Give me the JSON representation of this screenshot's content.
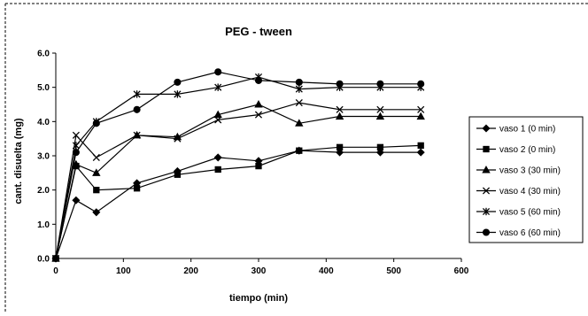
{
  "chart_data": {
    "type": "line",
    "title": "PEG - tween",
    "xlabel": "tiempo (min)",
    "ylabel": "cant. disuelta (mg)",
    "xlim": [
      0,
      600
    ],
    "ylim": [
      0,
      6.0
    ],
    "xticks": [
      "0",
      "100",
      "200",
      "300",
      "400",
      "500",
      "600"
    ],
    "yticks": [
      "0.0",
      "1.0",
      "2.0",
      "3.0",
      "4.0",
      "5.0",
      "6.0"
    ],
    "grid": false,
    "legend_position": "right",
    "series": [
      {
        "name": "vaso 1 (0 min)",
        "marker": "diamond",
        "points": [
          [
            0,
            0
          ],
          [
            30,
            1.7
          ],
          [
            60,
            1.35
          ],
          [
            120,
            2.2
          ],
          [
            180,
            2.55
          ],
          [
            240,
            2.95
          ],
          [
            300,
            2.85
          ],
          [
            360,
            3.15
          ],
          [
            420,
            3.1
          ],
          [
            480,
            3.1
          ],
          [
            540,
            3.1
          ]
        ]
      },
      {
        "name": "vaso 2 (0 min)",
        "marker": "square",
        "points": [
          [
            0,
            0
          ],
          [
            30,
            2.7
          ],
          [
            60,
            2.0
          ],
          [
            120,
            2.05
          ],
          [
            180,
            2.45
          ],
          [
            240,
            2.6
          ],
          [
            300,
            2.7
          ],
          [
            360,
            3.15
          ],
          [
            420,
            3.25
          ],
          [
            480,
            3.25
          ],
          [
            540,
            3.3
          ]
        ]
      },
      {
        "name": "vaso 3 (30 min)",
        "marker": "triangle",
        "points": [
          [
            0,
            0
          ],
          [
            30,
            2.75
          ],
          [
            60,
            2.5
          ],
          [
            120,
            3.6
          ],
          [
            180,
            3.55
          ],
          [
            240,
            4.2
          ],
          [
            300,
            4.5
          ],
          [
            360,
            3.95
          ],
          [
            420,
            4.15
          ],
          [
            480,
            4.15
          ],
          [
            540,
            4.15
          ]
        ]
      },
      {
        "name": "vaso 4 (30 min)",
        "marker": "x",
        "points": [
          [
            0,
            0
          ],
          [
            30,
            3.6
          ],
          [
            60,
            2.95
          ],
          [
            120,
            3.6
          ],
          [
            180,
            3.5
          ],
          [
            240,
            4.05
          ],
          [
            300,
            4.2
          ],
          [
            360,
            4.55
          ],
          [
            420,
            4.35
          ],
          [
            480,
            4.35
          ],
          [
            540,
            4.35
          ]
        ]
      },
      {
        "name": "vaso 5 (60 min)",
        "marker": "star",
        "points": [
          [
            0,
            0
          ],
          [
            30,
            3.3
          ],
          [
            60,
            4.0
          ],
          [
            120,
            4.8
          ],
          [
            180,
            4.8
          ],
          [
            240,
            5.0
          ],
          [
            300,
            5.3
          ],
          [
            360,
            4.95
          ],
          [
            420,
            5.0
          ],
          [
            480,
            5.0
          ],
          [
            540,
            5.0
          ]
        ]
      },
      {
        "name": "vaso 6 (60 min)",
        "marker": "circle",
        "points": [
          [
            0,
            0
          ],
          [
            30,
            3.1
          ],
          [
            60,
            3.95
          ],
          [
            120,
            4.35
          ],
          [
            180,
            5.15
          ],
          [
            240,
            5.45
          ],
          [
            300,
            5.2
          ],
          [
            360,
            5.15
          ],
          [
            420,
            5.1
          ],
          [
            480,
            5.1
          ],
          [
            540,
            5.1
          ]
        ]
      }
    ]
  }
}
